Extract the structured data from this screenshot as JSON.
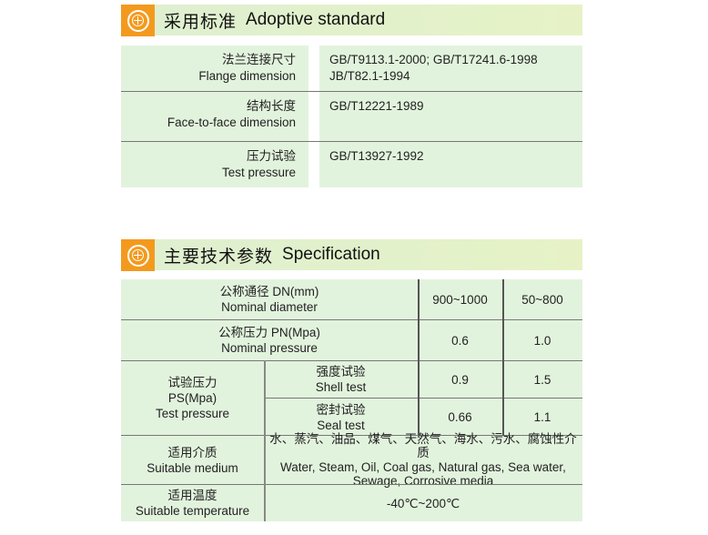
{
  "section1": {
    "title_cn": "采用标准",
    "title_en": "Adoptive standard",
    "icon": "target-crosshair-icon",
    "rows": [
      {
        "cn": "法兰连接尺寸",
        "en": "Flange dimension",
        "value1": "GB/T9113.1-2000;  GB/T17241.6-1998",
        "value2": "JB/T82.1-1994"
      },
      {
        "cn": "结构长度",
        "en": "Face-to-face dimension",
        "value1": "GB/T12221-1989"
      },
      {
        "cn": "压力试验",
        "en": "Test pressure",
        "value1": "GB/T13927-1992"
      }
    ]
  },
  "section2": {
    "title_cn": "主要技术参数",
    "title_en": "Specification",
    "icon": "target-crosshair-icon",
    "nominal_diameter": {
      "cn": "公称通径  DN(mm)",
      "en": "Nominal diameter",
      "v1": "900~1000",
      "v2": "50~800"
    },
    "nominal_pressure": {
      "cn": "公称压力  PN(Mpa)",
      "en": "Nominal pressure",
      "v1": "0.6",
      "v2": "1.0"
    },
    "test_pressure": {
      "cn": "试验压力",
      "unit": "PS(Mpa)",
      "en": "Test pressure",
      "shell": {
        "cn": "强度试验",
        "en": "Shell test",
        "v1": "0.9",
        "v2": "1.5"
      },
      "seal": {
        "cn": "密封试验",
        "en": "Seal test",
        "v1": "0.66",
        "v2": "1.1"
      }
    },
    "medium": {
      "cn": "适用介质",
      "en": "Suitable medium",
      "value_cn": "水、蒸汽、油品、煤气、天然气、海水、污水、腐蚀性介质",
      "value_en1": "Water, Steam, Oil, Coal gas, Natural gas, Sea water,",
      "value_en2": "Sewage, Corrosive media"
    },
    "temperature": {
      "cn": "适用温度",
      "en": "Suitable temperature",
      "value": "-40℃~200℃"
    }
  },
  "colors": {
    "accent": "#f39a1e",
    "cell": "#e2f3dd"
  }
}
